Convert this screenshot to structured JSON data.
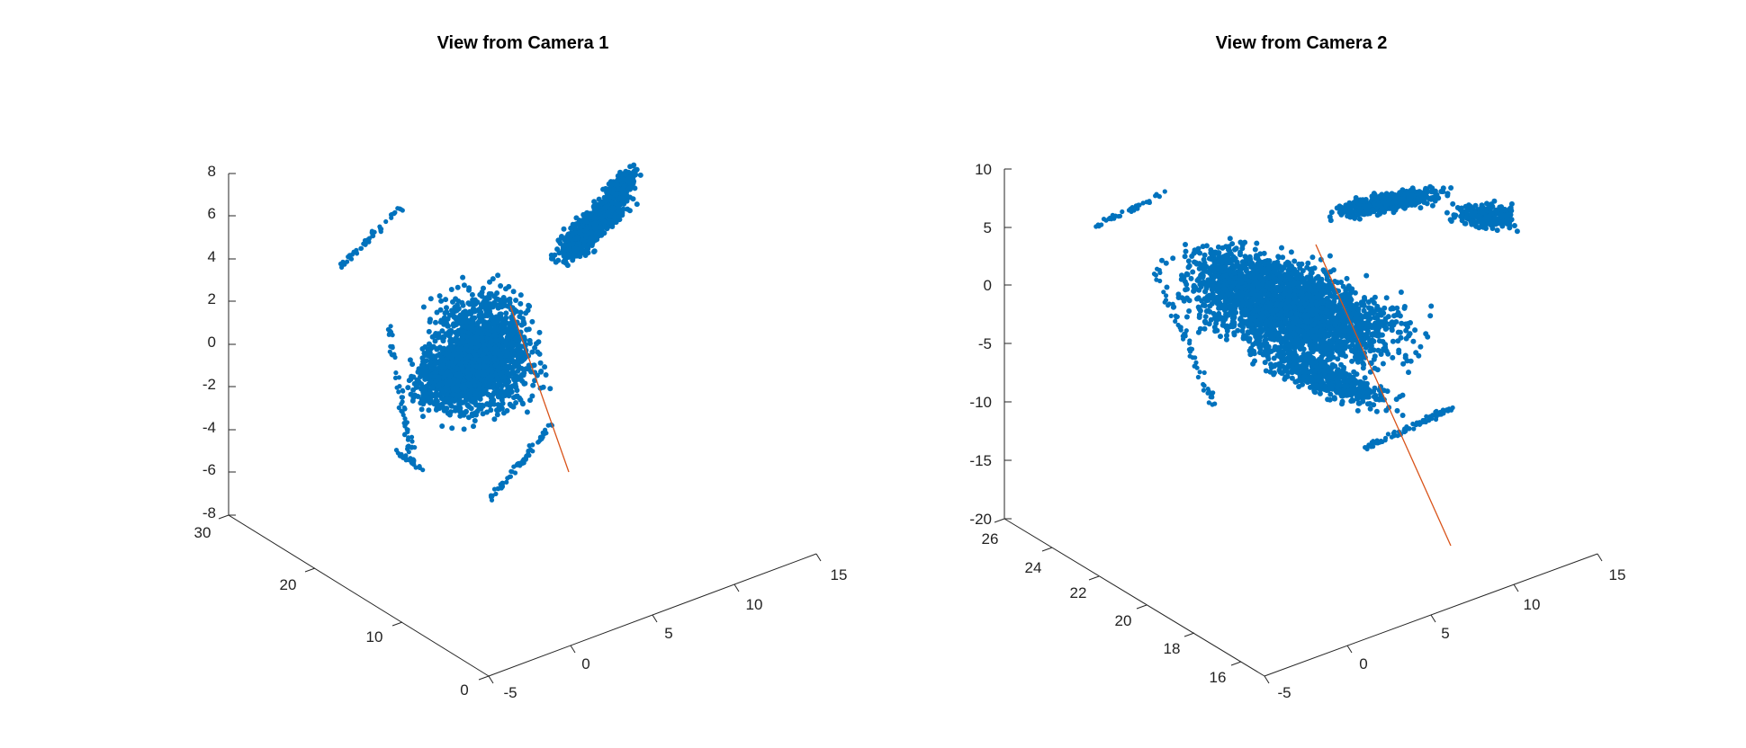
{
  "chart_data": [
    {
      "type": "scatter",
      "title": "View from Camera 1",
      "projection": "3d",
      "xlabel": "",
      "ylabel": "",
      "zlabel": "",
      "x_ticks": [
        "-5",
        "0",
        "5",
        "10",
        "15"
      ],
      "y_ticks": [
        "0",
        "10",
        "20",
        "30"
      ],
      "z_ticks": [
        "8",
        "6",
        "4",
        "2",
        "0",
        "-2",
        "-4",
        "-6",
        "-8"
      ],
      "xlim": [
        -5,
        15
      ],
      "ylim": [
        0,
        30
      ],
      "zlim": [
        -8,
        8
      ],
      "grid": false,
      "colors": {
        "points": "#0072BD",
        "ray": "#D95319"
      }
    },
    {
      "type": "scatter",
      "title": "View from Camera 2",
      "projection": "3d",
      "xlabel": "",
      "ylabel": "",
      "zlabel": "",
      "x_ticks": [
        "-5",
        "0",
        "5",
        "10",
        "15"
      ],
      "y_ticks": [
        "16",
        "18",
        "20",
        "22",
        "24",
        "26"
      ],
      "z_ticks": [
        "10",
        "5",
        "0",
        "-5",
        "-10",
        "-15",
        "-20"
      ],
      "xlim": [
        -5,
        15
      ],
      "ylim": [
        15,
        26
      ],
      "zlim": [
        -20,
        10
      ],
      "grid": false,
      "colors": {
        "points": "#0072BD",
        "ray": "#D95319"
      }
    }
  ]
}
